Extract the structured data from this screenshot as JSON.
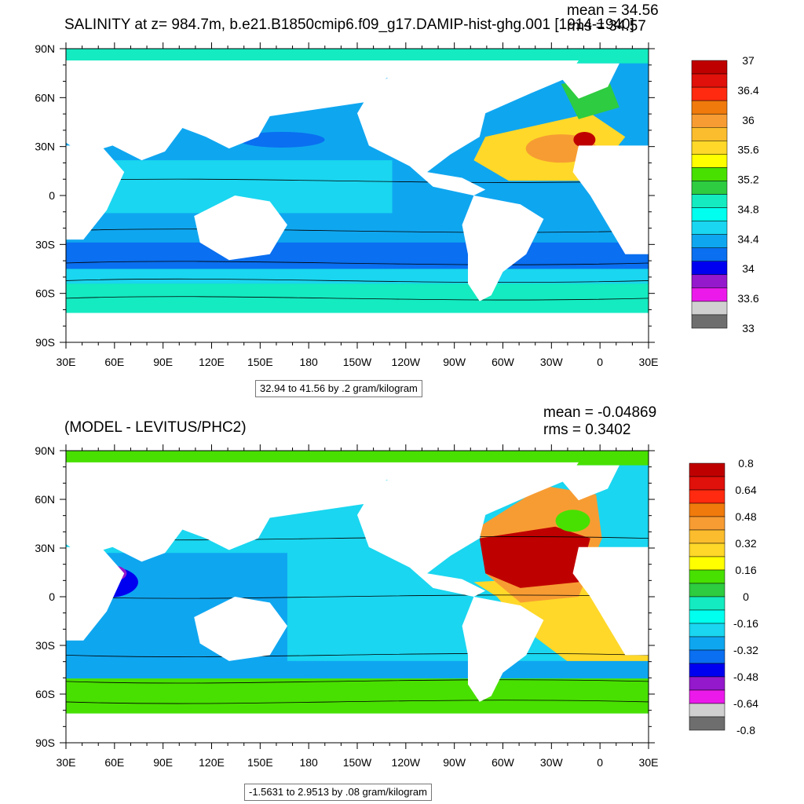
{
  "maps": [
    {
      "title": "SALINITY at z= 984.7m, b.e21.B1850cmip6.f09_g17.DAMIP-hist-ghg.001 [1914-1940]",
      "mean": "mean = 34.56",
      "rms": "rms = 34.57",
      "units": "32.94 to 41.56 by .2 gram/kilogram",
      "x_ticks": [
        "30E",
        "60E",
        "90E",
        "120E",
        "150E",
        "180",
        "150W",
        "120W",
        "90W",
        "60W",
        "30W",
        "0",
        "30E"
      ],
      "y_ticks": [
        "90N",
        "60N",
        "30N",
        "0",
        "30S",
        "60S",
        "90S"
      ],
      "colorbar_colors": [
        "#bf0000",
        "#e0100a",
        "#ff2a0f",
        "#f07a0c",
        "#f79c33",
        "#fbbd2d",
        "#ffd829",
        "#ffff00",
        "#48e000",
        "#2ecc40",
        "#14ebc1",
        "#00ffee",
        "#1ad6f0",
        "#0fa6f0",
        "#0a6ff0",
        "#0000f0",
        "#9418cc",
        "#eb1aeb",
        "#d0d0d0",
        "#6e6e6e"
      ],
      "colorbar_labels": [
        "37",
        "36.4",
        "36",
        "35.6",
        "35.2",
        "34.8",
        "34.4",
        "34",
        "33.6",
        "33"
      ]
    },
    {
      "title": "(MODEL - LEVITUS/PHC2)",
      "mean": "mean = -0.04869",
      "rms": "rms = 0.3402",
      "units": "-1.5631 to 2.9513 by .08 gram/kilogram",
      "x_ticks": [
        "30E",
        "60E",
        "90E",
        "120E",
        "150E",
        "180",
        "150W",
        "120W",
        "90W",
        "60W",
        "30W",
        "0",
        "30E"
      ],
      "y_ticks": [
        "90N",
        "60N",
        "30N",
        "0",
        "30S",
        "60S",
        "90S"
      ],
      "colorbar_colors": [
        "#bf0000",
        "#e0100a",
        "#ff2a0f",
        "#f07a0c",
        "#f79c33",
        "#fbbd2d",
        "#ffd829",
        "#ffff00",
        "#48e000",
        "#2ecc40",
        "#14ebc1",
        "#00ffee",
        "#1ad6f0",
        "#0fa6f0",
        "#0a6ff0",
        "#0000f0",
        "#9418cc",
        "#eb1aeb",
        "#d0d0d0",
        "#6e6e6e"
      ],
      "colorbar_labels": [
        "0.8",
        "0.64",
        "0.48",
        "0.32",
        "0.16",
        "0",
        "-0.16",
        "-0.32",
        "-0.48",
        "-0.64",
        "-0.8"
      ]
    }
  ],
  "map_colors": {
    "land": "#ffffff",
    "top_ocean_main": "#0fa6f0",
    "top_ocean_tropics": "#1ad6f0",
    "top_southern_1": "#0a6ff0",
    "top_southern_2": "#1ad6f0",
    "top_southern_3": "#14ebc1",
    "top_arctic": "#14ebc1",
    "top_atlantic_high": "#ffd829",
    "top_atlantic_core": "#f79c33",
    "bot_ocean_main": "#1ad6f0",
    "bot_ocean_west": "#0fa6f0",
    "bot_southern": "#48e000",
    "bot_arctic": "#48e000",
    "bot_atlantic_warm": "#bf0000",
    "bot_atlantic_mid": "#f79c33",
    "bot_south_atlantic": "#ffd829"
  }
}
